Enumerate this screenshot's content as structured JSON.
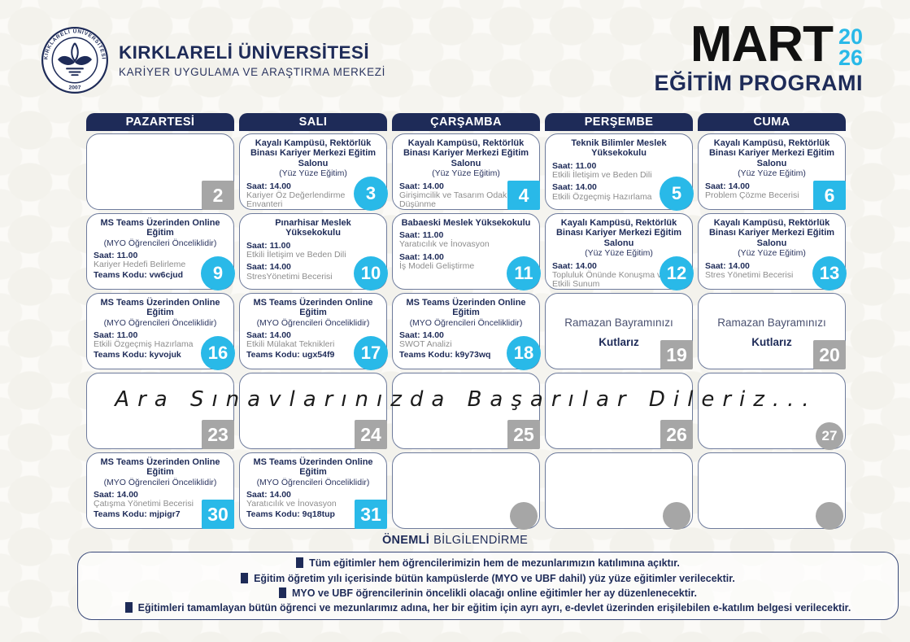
{
  "header": {
    "university": "KIRKLARELİ ÜNİVERSİTESİ",
    "center": "KARİYER UYGULAMA VE ARAŞTIRMA MERKEZİ",
    "seal": {
      "ring_text": "KIRKLARELİ ÜNİVERSİTESİ",
      "year": "2007"
    },
    "month": "MART",
    "year_line1": "20",
    "year_line2": "26",
    "program": "EĞİTİM PROGRAMI"
  },
  "colors": {
    "navy": "#1e2b58",
    "cyan": "#29b9e8",
    "badge_gray": "#a6a6a6",
    "text_gray": "#8d8d8d",
    "month_black": "#111111"
  },
  "calendar": {
    "weekdays": [
      "PAZARTESİ",
      "SALI",
      "ÇARŞAMBA",
      "PERŞEMBE",
      "CUMA"
    ],
    "banner": "Ara Sınavlarınızda Başarılar Dileriz...",
    "rows": [
      [
        {
          "day": "2",
          "badge": {
            "shape": "square",
            "color": "gray"
          }
        },
        {
          "day": "3",
          "badge": {
            "shape": "circle",
            "color": "cyan"
          },
          "title": "Kayalı Kampüsü, Rektörlük Binası Kariyer Merkezi Eğitim Salonu",
          "subtitle": "(Yüz Yüze Eğitim)",
          "sessions": [
            {
              "time": "Saat: 14.00",
              "topic": "Kariyer Öz Değerlendirme Envanteri"
            }
          ]
        },
        {
          "day": "4",
          "badge": {
            "shape": "square",
            "color": "cyan"
          },
          "title": "Kayalı Kampüsü, Rektörlük Binası Kariyer Merkezi Eğitim Salonu",
          "subtitle": "(Yüz Yüze Eğitim)",
          "sessions": [
            {
              "time": "Saat: 14.00",
              "topic": "Girişimcilik ve Tasarım Odaklı Düşünme"
            }
          ]
        },
        {
          "day": "5",
          "badge": {
            "shape": "circle",
            "color": "cyan"
          },
          "title": "Teknik Bilimler Meslek Yüksekokulu",
          "sessions": [
            {
              "time": "Saat: 11.00",
              "topic": "Etkili İletişim ve Beden Dili"
            },
            {
              "time": "Saat: 14.00",
              "topic": "Etkili Özgeçmiş Hazırlama"
            }
          ]
        },
        {
          "day": "6",
          "badge": {
            "shape": "square",
            "color": "cyan"
          },
          "title": "Kayalı Kampüsü, Rektörlük Binası Kariyer Merkezi Eğitim Salonu",
          "subtitle": "(Yüz Yüze Eğitim)",
          "sessions": [
            {
              "time": "Saat: 14.00",
              "topic": "Problem Çözme Becerisi"
            }
          ]
        }
      ],
      [
        {
          "day": "9",
          "badge": {
            "shape": "circle",
            "color": "cyan"
          },
          "title": "MS Teams Üzerinden Online Eğitim",
          "subtitle": "(MYO Öğrencileri Önceliklidir)",
          "sessions": [
            {
              "time": "Saat: 11.00",
              "topic": "Kariyer Hedefi Belirleme"
            }
          ],
          "teams": "Teams Kodu: vw6cjud"
        },
        {
          "day": "10",
          "badge": {
            "shape": "circle",
            "color": "cyan"
          },
          "title": "Pınarhisar Meslek Yüksekokulu",
          "sessions": [
            {
              "time": "Saat: 11.00",
              "topic": "Etkili İletişim ve Beden Dili"
            },
            {
              "time": "Saat: 14.00",
              "topic": "StresYönetimi Becerisi"
            }
          ]
        },
        {
          "day": "11",
          "badge": {
            "shape": "circle",
            "color": "cyan"
          },
          "title": "Babaeski Meslek Yüksekokulu",
          "sessions": [
            {
              "time": "Saat: 11.00",
              "topic": "Yaratıcılık ve İnovasyon"
            },
            {
              "time": "Saat: 14.00",
              "topic": "İş Modeli Geliştirme"
            }
          ]
        },
        {
          "day": "12",
          "badge": {
            "shape": "circle",
            "color": "cyan"
          },
          "title": "Kayalı Kampüsü, Rektörlük Binası Kariyer Merkezi Eğitim Salonu",
          "subtitle": "(Yüz Yüze Eğitim)",
          "sessions": [
            {
              "time": "Saat: 14.00",
              "topic": "Topluluk Önünde Konuşma ve Etkili Sunum"
            }
          ]
        },
        {
          "day": "13",
          "badge": {
            "shape": "circle",
            "color": "cyan"
          },
          "title": "Kayalı Kampüsü, Rektörlük Binası Kariyer Merkezi Eğitim Salonu",
          "subtitle": "(Yüz Yüze Eğitim)",
          "sessions": [
            {
              "time": "Saat: 14.00",
              "topic": "Stres Yönetimi Becerisi"
            }
          ]
        }
      ],
      [
        {
          "day": "16",
          "badge": {
            "shape": "circle",
            "color": "cyan"
          },
          "title": "MS Teams Üzerinden Online Eğitim",
          "subtitle": "(MYO Öğrencileri Önceliklidir)",
          "sessions": [
            {
              "time": "Saat: 11.00",
              "topic": "Etkili Özgeçmiş Hazırlama"
            }
          ],
          "teams": "Teams Kodu: kyvojuk"
        },
        {
          "day": "17",
          "badge": {
            "shape": "circle",
            "color": "cyan"
          },
          "title": "MS Teams Üzerinden Online Eğitim",
          "subtitle": "(MYO Öğrencileri Önceliklidir)",
          "sessions": [
            {
              "time": "Saat: 14.00",
              "topic": "Etkili Mülakat Teknikleri"
            }
          ],
          "teams": "Teams Kodu: ugx54f9"
        },
        {
          "day": "18",
          "badge": {
            "shape": "circle",
            "color": "cyan"
          },
          "title": "MS Teams Üzerinden Online Eğitim",
          "subtitle": "(MYO Öğrencileri Önceliklidir)",
          "sessions": [
            {
              "time": "Saat: 14.00",
              "topic": "SWOT Analizi"
            }
          ],
          "teams": "Teams Kodu: k9y73wq"
        },
        {
          "day": "19",
          "badge": {
            "shape": "square",
            "color": "gray"
          },
          "message": [
            "Ramazan Bayramınızı",
            "Kutlarız"
          ]
        },
        {
          "day": "20",
          "badge": {
            "shape": "square",
            "color": "gray"
          },
          "message": [
            "Ramazan Bayramınızı",
            "Kutlarız"
          ]
        }
      ],
      [
        {
          "day": "23",
          "badge": {
            "shape": "square",
            "color": "gray"
          }
        },
        {
          "day": "24",
          "badge": {
            "shape": "square",
            "color": "gray"
          }
        },
        {
          "day": "25",
          "badge": {
            "shape": "square",
            "color": "gray"
          }
        },
        {
          "day": "26",
          "badge": {
            "shape": "square",
            "color": "gray"
          }
        },
        {
          "day": "27",
          "badge": {
            "shape": "circle",
            "color": "gray"
          }
        }
      ],
      [
        {
          "day": "30",
          "badge": {
            "shape": "square",
            "color": "cyan"
          },
          "title": "MS Teams Üzerinden Online Eğitim",
          "subtitle": "(MYO Öğrencileri Önceliklidir)",
          "sessions": [
            {
              "time": "Saat: 14.00",
              "topic": "Çatışma Yönetimi Becerisi"
            }
          ],
          "teams": "Teams Kodu: mjpigr7"
        },
        {
          "day": "31",
          "badge": {
            "shape": "square",
            "color": "cyan"
          },
          "title": "MS Teams Üzerinden Online Eğitim",
          "subtitle": "(MYO Öğrencileri Önceliklidir)",
          "sessions": [
            {
              "time": "Saat: 14.00",
              "topic": "Yaratıcılık ve İnovasyon"
            }
          ],
          "teams": "Teams Kodu: 9q18tup"
        },
        {
          "day": "",
          "badge": {
            "shape": "circle",
            "color": "gray"
          }
        },
        {
          "day": "",
          "badge": {
            "shape": "circle",
            "color": "gray"
          }
        },
        {
          "day": "",
          "badge": {
            "shape": "circle",
            "color": "gray"
          }
        }
      ]
    ]
  },
  "notes": {
    "heading_bold": "ÖNEMLİ",
    "heading_rest": "BİLGİLENDİRME",
    "items": [
      "Tüm eğitimler hem öğrencilerimizin hem de mezunlarımızın katılımına açıktır.",
      "Eğitim öğretim yılı içerisinde bütün kampüslerde (MYO ve UBF dahil) yüz yüze eğitimler verilecektir.",
      "MYO ve UBF öğrencilerinin öncelikli olacağı online eğitimler her ay düzenlenecektir.",
      "Eğitimleri tamamlayan bütün öğrenci ve mezunlarımız adına, her bir eğitim için ayrı ayrı, e-devlet üzerinden erişilebilen e-katılım belgesi verilecektir."
    ]
  }
}
